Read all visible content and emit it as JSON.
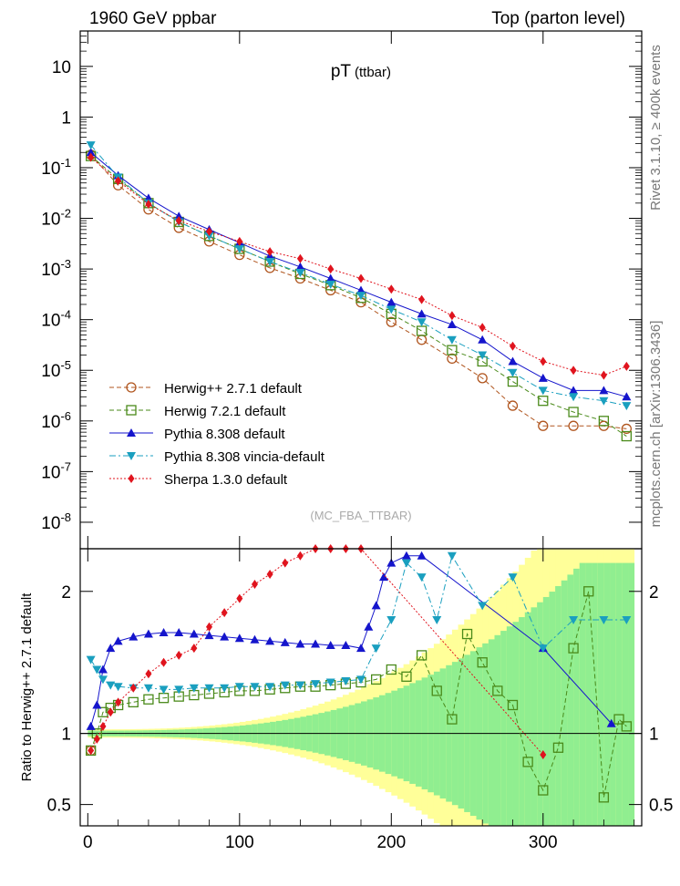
{
  "header": {
    "left": "1960 GeV ppbar",
    "right": "Top (parton level)",
    "side_rivet": "Rivet 3.1.10, ≥ 400k events",
    "side_mcplots": "mcplots.cern.ch [arXiv:1306.3436]",
    "watermark": "(MC_FBA_TTBAR)"
  },
  "chart_data": [
    {
      "type": "scatter",
      "title": "pT",
      "title_sub": "(ttbar)",
      "yscale": "log",
      "ylim": [
        3e-09,
        50
      ],
      "xlim": [
        -5,
        365
      ],
      "y_ticks": [
        {
          "v": 10,
          "label": "10"
        },
        {
          "v": 1,
          "label": "1"
        },
        {
          "v": 0.1,
          "label": "10^-1"
        },
        {
          "v": 0.01,
          "label": "10^-2"
        },
        {
          "v": 0.001,
          "label": "10^-3"
        },
        {
          "v": 0.0001,
          "label": "10^-4"
        },
        {
          "v": 1e-05,
          "label": "10^-5"
        },
        {
          "v": 1e-06,
          "label": "10^-6"
        },
        {
          "v": 1e-07,
          "label": "10^-7"
        },
        {
          "v": 1e-08,
          "label": "10^-8"
        }
      ],
      "legend": [
        {
          "name": "Herwig++ 2.7.1 default",
          "color": "#b0551e",
          "marker": "open-circle",
          "line": "dashed"
        },
        {
          "name": "Herwig 7.2.1 default",
          "color": "#4a8a1a",
          "marker": "open-square",
          "line": "dashed"
        },
        {
          "name": "Pythia 8.308 default",
          "color": "#1515cc",
          "marker": "triangle-up",
          "line": "solid"
        },
        {
          "name": "Pythia 8.308 vincia-default",
          "color": "#1a9fbf",
          "marker": "triangle-down",
          "line": "dashdot"
        },
        {
          "name": "Sherpa 1.3.0 default",
          "color": "#e0141e",
          "marker": "diamond",
          "line": "dotted"
        }
      ],
      "series": [
        {
          "name": "Herwig++ 2.7.1 default",
          "x": [
            2,
            20,
            40,
            60,
            80,
            100,
            120,
            140,
            160,
            180,
            200,
            220,
            240,
            260,
            280,
            300,
            320,
            340,
            355
          ],
          "y": [
            0.18,
            0.045,
            0.015,
            0.0065,
            0.0035,
            0.0019,
            0.00105,
            0.00065,
            0.00038,
            0.00022,
            9e-05,
            4e-05,
            1.7e-05,
            7e-06,
            2e-06,
            8e-07,
            8e-07,
            8e-07,
            7e-07
          ]
        },
        {
          "name": "Herwig 7.2.1 default",
          "x": [
            2,
            20,
            40,
            60,
            80,
            100,
            120,
            140,
            160,
            180,
            200,
            220,
            240,
            260,
            280,
            300,
            320,
            340,
            355
          ],
          "y": [
            0.17,
            0.06,
            0.02,
            0.0085,
            0.0045,
            0.0025,
            0.0014,
            0.0008,
            0.00048,
            0.00027,
            0.00013,
            6e-05,
            2.5e-05,
            1.5e-05,
            6e-06,
            2.5e-06,
            1.5e-06,
            1e-06,
            5e-07
          ]
        },
        {
          "name": "Pythia 8.308 default",
          "x": [
            2,
            20,
            40,
            60,
            80,
            100,
            120,
            140,
            160,
            180,
            200,
            220,
            240,
            260,
            280,
            300,
            320,
            340,
            355
          ],
          "y": [
            0.2,
            0.07,
            0.025,
            0.011,
            0.006,
            0.0033,
            0.0018,
            0.0011,
            0.00065,
            0.00038,
            0.00022,
            0.00013,
            8e-05,
            4e-05,
            1.5e-05,
            7e-06,
            4e-06,
            4e-06,
            3e-06
          ]
        },
        {
          "name": "Pythia 8.308 vincia-default",
          "x": [
            2,
            20,
            40,
            60,
            80,
            100,
            120,
            140,
            160,
            180,
            200,
            220,
            240,
            260,
            280,
            300,
            320,
            340,
            355
          ],
          "y": [
            0.28,
            0.065,
            0.02,
            0.0085,
            0.0045,
            0.0025,
            0.0014,
            0.00085,
            0.0005,
            0.0003,
            0.00016,
            9e-05,
            4e-05,
            2e-05,
            9e-06,
            4e-06,
            3e-06,
            2.5e-06,
            2e-06
          ]
        },
        {
          "name": "Sherpa 1.3.0 default",
          "x": [
            2,
            20,
            40,
            60,
            80,
            100,
            120,
            140,
            160,
            180,
            200,
            220,
            240,
            260,
            280,
            300,
            320,
            340,
            355
          ],
          "y": [
            0.16,
            0.055,
            0.019,
            0.009,
            0.0055,
            0.0035,
            0.0022,
            0.0016,
            0.001,
            0.00065,
            0.0004,
            0.00025,
            0.00012,
            7e-05,
            3e-05,
            1.5e-05,
            1e-05,
            8e-06,
            1.2e-05
          ]
        }
      ]
    },
    {
      "type": "scatter",
      "ylabel": "Ratio to Herwig++ 2.7.1 default",
      "xlabel": "",
      "ylim": [
        0.35,
        2.3
      ],
      "xlim": [
        -5,
        365
      ],
      "y_ticks": [
        {
          "v": 0.5,
          "label": "0.5"
        },
        {
          "v": 1,
          "label": "1"
        },
        {
          "v": 2,
          "label": "2"
        }
      ],
      "x_ticks": [
        {
          "v": 0,
          "label": "0"
        },
        {
          "v": 100,
          "label": "100"
        },
        {
          "v": 200,
          "label": "200"
        },
        {
          "v": 300,
          "label": "300"
        }
      ],
      "reference_line": 1,
      "bands": {
        "inner_color": "#90ee90",
        "outer_color": "#ffff99"
      },
      "series": [
        {
          "name": "Herwig 7.2.1 default",
          "x": [
            2,
            6,
            10,
            15,
            20,
            30,
            40,
            50,
            60,
            70,
            80,
            90,
            100,
            110,
            120,
            130,
            140,
            150,
            160,
            170,
            180,
            190,
            200,
            210,
            220,
            230,
            240,
            250,
            260,
            270,
            280,
            290,
            300,
            310,
            320,
            330,
            340,
            350,
            355
          ],
          "y": [
            0.88,
            1.0,
            1.15,
            1.18,
            1.2,
            1.22,
            1.24,
            1.25,
            1.26,
            1.27,
            1.28,
            1.29,
            1.3,
            1.3,
            1.31,
            1.32,
            1.33,
            1.33,
            1.34,
            1.35,
            1.36,
            1.38,
            1.45,
            1.4,
            1.55,
            1.3,
            1.1,
            1.7,
            1.5,
            1.3,
            1.2,
            0.8,
            0.6,
            0.9,
            1.6,
            2.0,
            0.55,
            1.1,
            1.05
          ]
        },
        {
          "name": "Pythia 8.308 default",
          "x": [
            2,
            6,
            10,
            15,
            20,
            30,
            40,
            50,
            60,
            70,
            80,
            90,
            100,
            110,
            120,
            130,
            140,
            150,
            160,
            170,
            180,
            185,
            190,
            195,
            200,
            210,
            220,
            300,
            345
          ],
          "y": [
            1.05,
            1.2,
            1.45,
            1.6,
            1.65,
            1.68,
            1.7,
            1.71,
            1.71,
            1.7,
            1.69,
            1.68,
            1.67,
            1.66,
            1.65,
            1.64,
            1.63,
            1.63,
            1.62,
            1.62,
            1.6,
            1.75,
            1.9,
            2.1,
            2.2,
            2.25,
            2.25,
            1.6,
            1.07
          ]
        },
        {
          "name": "Pythia 8.308 vincia-default",
          "x": [
            2,
            6,
            10,
            15,
            20,
            30,
            40,
            50,
            60,
            70,
            80,
            90,
            100,
            110,
            120,
            130,
            140,
            150,
            160,
            170,
            180,
            190,
            200,
            210,
            220,
            230,
            240,
            260,
            280,
            300,
            320,
            340,
            355
          ],
          "y": [
            1.52,
            1.45,
            1.38,
            1.34,
            1.33,
            1.32,
            1.32,
            1.31,
            1.31,
            1.32,
            1.32,
            1.32,
            1.33,
            1.33,
            1.33,
            1.34,
            1.34,
            1.35,
            1.36,
            1.37,
            1.38,
            1.6,
            1.8,
            2.2,
            2.1,
            1.8,
            2.25,
            1.9,
            2.1,
            1.6,
            1.8,
            1.8,
            1.8
          ]
        },
        {
          "name": "Sherpa 1.3.0 default",
          "x": [
            2,
            6,
            10,
            15,
            20,
            30,
            40,
            50,
            60,
            70,
            80,
            90,
            100,
            110,
            120,
            130,
            140,
            150,
            160,
            170,
            180,
            300
          ],
          "y": [
            0.88,
            0.96,
            1.05,
            1.15,
            1.22,
            1.32,
            1.42,
            1.5,
            1.55,
            1.6,
            1.75,
            1.85,
            1.95,
            2.05,
            2.12,
            2.2,
            2.25,
            2.3,
            2.3,
            2.3,
            2.3,
            0.85
          ]
        }
      ]
    }
  ]
}
